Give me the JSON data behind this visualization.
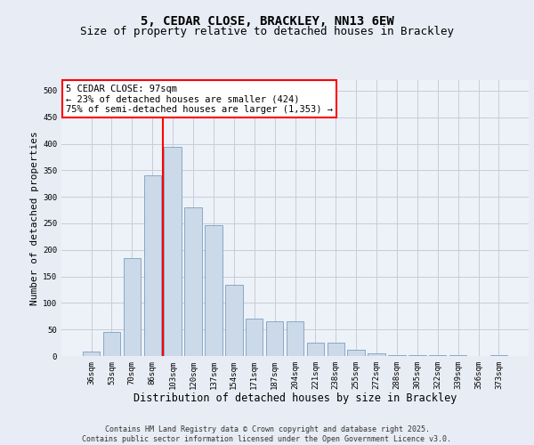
{
  "title1": "5, CEDAR CLOSE, BRACKLEY, NN13 6EW",
  "title2": "Size of property relative to detached houses in Brackley",
  "xlabel": "Distribution of detached houses by size in Brackley",
  "ylabel": "Number of detached properties",
  "categories": [
    "36sqm",
    "53sqm",
    "70sqm",
    "86sqm",
    "103sqm",
    "120sqm",
    "137sqm",
    "154sqm",
    "171sqm",
    "187sqm",
    "204sqm",
    "221sqm",
    "238sqm",
    "255sqm",
    "272sqm",
    "288sqm",
    "305sqm",
    "322sqm",
    "339sqm",
    "356sqm",
    "373sqm"
  ],
  "values": [
    8,
    46,
    185,
    340,
    395,
    280,
    246,
    135,
    70,
    65,
    65,
    25,
    25,
    11,
    5,
    2,
    1,
    1,
    1,
    0,
    1
  ],
  "bar_color": "#ccd9e8",
  "bar_edge_color": "#7aa0c0",
  "vline_color": "red",
  "vline_pos": 3.5,
  "annotation_text": "5 CEDAR CLOSE: 97sqm\n← 23% of detached houses are smaller (424)\n75% of semi-detached houses are larger (1,353) →",
  "annotation_box_color": "white",
  "annotation_box_edge": "red",
  "ylim": [
    0,
    520
  ],
  "yticks": [
    0,
    50,
    100,
    150,
    200,
    250,
    300,
    350,
    400,
    450,
    500
  ],
  "background_color": "#e8ecf5",
  "plot_bg_color": "#edf1f8",
  "grid_color": "#c8ccd8",
  "footer_text": "Contains HM Land Registry data © Crown copyright and database right 2025.\nContains public sector information licensed under the Open Government Licence v3.0.",
  "title_fontsize": 10,
  "subtitle_fontsize": 9,
  "tick_fontsize": 6.5,
  "ylabel_fontsize": 8,
  "xlabel_fontsize": 8.5,
  "annot_fontsize": 7.5
}
